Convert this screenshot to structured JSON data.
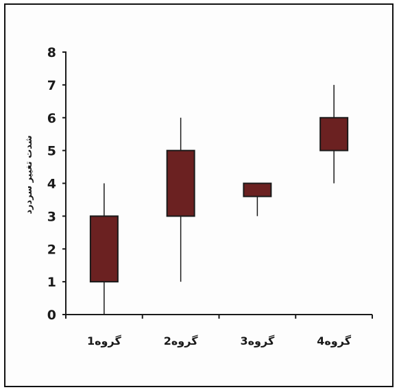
{
  "chart_data": {
    "type": "box",
    "title": "",
    "xlabel": "",
    "ylabel": "شدت تغییر سردرد",
    "ylim": [
      0,
      8
    ],
    "yticks": [
      0,
      1,
      2,
      3,
      4,
      5,
      6,
      7,
      8
    ],
    "grid": false,
    "categories": [
      "گروه1",
      "گروه2",
      "گروه3",
      "گروه4"
    ],
    "series": [
      {
        "box_low": [
          1,
          3,
          3.6,
          5
        ],
        "box_high": [
          3,
          5,
          4,
          6
        ],
        "whisker_low": [
          0,
          1,
          3,
          4
        ],
        "whisker_high": [
          4,
          6,
          4,
          7
        ]
      }
    ],
    "colors": {
      "box_fill": "#6b2121",
      "box_stroke": "#1a1a1a",
      "axis": "#1a1a1a"
    }
  }
}
